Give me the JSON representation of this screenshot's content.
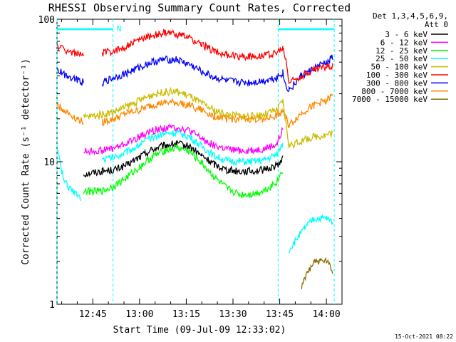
{
  "chart_data": {
    "type": "line",
    "title": "RHESSI Observing Summary Count Rates, Corrected",
    "xlabel": "Start Time (09-Jul-09 12:33:02)",
    "ylabel": "Corrected Count Rate (s⁻¹ detector⁻¹)",
    "yscale": "log",
    "ylim": [
      1,
      100
    ],
    "xlim_minutes": [
      -26.5,
      65
    ],
    "x_ticks": [
      {
        "label": "12:45",
        "min": -15
      },
      {
        "label": "13:00",
        "min": 0
      },
      {
        "label": "13:15",
        "min": 15
      },
      {
        "label": "13:30",
        "min": 30
      },
      {
        "label": "13:45",
        "min": 45
      },
      {
        "label": "14:00",
        "min": 60
      }
    ],
    "y_ticks": [
      {
        "label": "1",
        "value": 1
      },
      {
        "label": "10",
        "value": 10
      },
      {
        "label": "100",
        "value": 100
      }
    ],
    "legend_header": [
      "Det 1,3,4,5,6,9,",
      "Att 0"
    ],
    "legend_position": "right",
    "night_marker": "N",
    "night_intervals_min": [
      [
        -26.5,
        -8.5
      ],
      [
        44.5,
        62.5
      ]
    ],
    "series": [
      {
        "name": "3 - 6 keV",
        "color": "#000000",
        "values": [
          [
            -26.5,
            null
          ],
          [
            -19,
            null
          ],
          [
            -18,
            8.2
          ],
          [
            -12,
            8.6
          ],
          [
            -8,
            8.8
          ],
          [
            -4,
            9.5
          ],
          [
            0,
            10.8
          ],
          [
            4,
            12.2
          ],
          [
            8,
            13.0
          ],
          [
            12,
            13.4
          ],
          [
            16,
            12.8
          ],
          [
            20,
            11.0
          ],
          [
            24,
            9.6
          ],
          [
            28,
            8.8
          ],
          [
            32,
            8.6
          ],
          [
            36,
            8.6
          ],
          [
            40,
            8.8
          ],
          [
            44,
            9.4
          ],
          [
            46,
            10.5
          ],
          [
            47,
            null
          ]
        ]
      },
      {
        "name": "6 - 12 keV",
        "color": "#ff00ff",
        "values": [
          [
            -26.5,
            null
          ],
          [
            -19,
            null
          ],
          [
            -18,
            11.8
          ],
          [
            -12,
            12.0
          ],
          [
            -8,
            12.5
          ],
          [
            -4,
            13.5
          ],
          [
            0,
            15.0
          ],
          [
            4,
            16.5
          ],
          [
            8,
            17.3
          ],
          [
            12,
            17.5
          ],
          [
            16,
            16.5
          ],
          [
            20,
            14.5
          ],
          [
            24,
            13.0
          ],
          [
            28,
            12.2
          ],
          [
            32,
            12.0
          ],
          [
            36,
            12.0
          ],
          [
            40,
            12.3
          ],
          [
            44,
            13.2
          ],
          [
            46,
            16.8
          ],
          [
            47,
            null
          ]
        ]
      },
      {
        "name": "12 - 25 keV",
        "color": "#00ff00",
        "values": [
          [
            -26.5,
            null
          ],
          [
            -19,
            null
          ],
          [
            -18,
            6.2
          ],
          [
            -12,
            6.2
          ],
          [
            -8,
            6.8
          ],
          [
            -4,
            7.8
          ],
          [
            0,
            9.2
          ],
          [
            4,
            10.8
          ],
          [
            8,
            12.0
          ],
          [
            12,
            12.6
          ],
          [
            16,
            11.8
          ],
          [
            20,
            9.8
          ],
          [
            24,
            7.8
          ],
          [
            28,
            6.5
          ],
          [
            32,
            5.9
          ],
          [
            36,
            5.9
          ],
          [
            40,
            6.3
          ],
          [
            44,
            7.2
          ],
          [
            46,
            8.8
          ],
          [
            47,
            null
          ]
        ]
      },
      {
        "name": "25 - 50 keV",
        "color": "#00ffff",
        "values": [
          [
            -26.5,
            13
          ],
          [
            -25,
            8.5
          ],
          [
            -23,
            6.5
          ],
          [
            -21,
            6.2
          ],
          [
            -19,
            5.6
          ],
          [
            -16,
            null
          ],
          [
            -12,
            10.4
          ],
          [
            -8,
            10.8
          ],
          [
            -4,
            11.8
          ],
          [
            0,
            13.2
          ],
          [
            4,
            14.8
          ],
          [
            8,
            15.8
          ],
          [
            12,
            16.0
          ],
          [
            16,
            15.0
          ],
          [
            20,
            12.8
          ],
          [
            24,
            11.0
          ],
          [
            28,
            10.2
          ],
          [
            32,
            10.0
          ],
          [
            36,
            10.0
          ],
          [
            40,
            10.3
          ],
          [
            44,
            11.2
          ],
          [
            46,
            13.5
          ],
          [
            47,
            null
          ],
          [
            48,
            2.4
          ],
          [
            50,
            2.8
          ],
          [
            53,
            3.4
          ],
          [
            56,
            4.0
          ],
          [
            60,
            4.0
          ],
          [
            62,
            3.8
          ],
          [
            63,
            null
          ]
        ]
      },
      {
        "name": "50 - 100 keV",
        "color": "#ccbb00",
        "values": [
          [
            -26.5,
            null
          ],
          [
            -19,
            null
          ],
          [
            -18,
            20.5
          ],
          [
            -12,
            21.5
          ],
          [
            -8,
            22.5
          ],
          [
            -4,
            24.5
          ],
          [
            0,
            27.0
          ],
          [
            4,
            29.5
          ],
          [
            8,
            31.0
          ],
          [
            12,
            31.0
          ],
          [
            16,
            29.0
          ],
          [
            20,
            25.5
          ],
          [
            24,
            23.0
          ],
          [
            28,
            21.5
          ],
          [
            32,
            21.0
          ],
          [
            36,
            21.0
          ],
          [
            40,
            21.5
          ],
          [
            44,
            23.0
          ],
          [
            46,
            26.5
          ],
          [
            48,
            13.0
          ],
          [
            52,
            14.0
          ],
          [
            56,
            15.0
          ],
          [
            60,
            15.5
          ],
          [
            62,
            16.0
          ],
          [
            63,
            null
          ]
        ]
      },
      {
        "name": "100 - 300 keV",
        "color": "#ff0000",
        "values": [
          [
            -26.5,
            65
          ],
          [
            -23,
            60
          ],
          [
            -20,
            57
          ],
          [
            -18,
            55
          ],
          [
            -16,
            null
          ],
          [
            -12,
            58
          ],
          [
            -8,
            60
          ],
          [
            -4,
            65
          ],
          [
            0,
            72
          ],
          [
            4,
            77
          ],
          [
            8,
            80
          ],
          [
            12,
            79
          ],
          [
            16,
            74
          ],
          [
            20,
            66
          ],
          [
            24,
            60
          ],
          [
            28,
            56
          ],
          [
            32,
            55
          ],
          [
            36,
            55
          ],
          [
            40,
            56
          ],
          [
            44,
            58
          ],
          [
            46,
            62
          ],
          [
            47,
            52
          ],
          [
            48,
            36
          ],
          [
            52,
            40
          ],
          [
            56,
            44
          ],
          [
            60,
            47
          ],
          [
            62,
            47
          ],
          [
            63,
            null
          ]
        ]
      },
      {
        "name": "300 - 800 keV",
        "color": "#0000ff",
        "values": [
          [
            -26.5,
            44
          ],
          [
            -23,
            40
          ],
          [
            -20,
            38
          ],
          [
            -18,
            36
          ],
          [
            -16,
            null
          ],
          [
            -12,
            36
          ],
          [
            -8,
            39
          ],
          [
            -4,
            42
          ],
          [
            0,
            46
          ],
          [
            4,
            50
          ],
          [
            8,
            52
          ],
          [
            12,
            52
          ],
          [
            16,
            48
          ],
          [
            20,
            43
          ],
          [
            24,
            39
          ],
          [
            28,
            37
          ],
          [
            32,
            36
          ],
          [
            36,
            36
          ],
          [
            40,
            37
          ],
          [
            44,
            39
          ],
          [
            46,
            42
          ],
          [
            47,
            34
          ],
          [
            48,
            32
          ],
          [
            52,
            40
          ],
          [
            56,
            45
          ],
          [
            60,
            50
          ],
          [
            62,
            54
          ],
          [
            63,
            null
          ]
        ]
      },
      {
        "name": "800 - 7000 keV",
        "color": "#ff8800",
        "values": [
          [
            -26.5,
            25
          ],
          [
            -23,
            22
          ],
          [
            -20,
            20
          ],
          [
            -18,
            19
          ],
          [
            -16,
            null
          ],
          [
            -12,
            19
          ],
          [
            -8,
            20
          ],
          [
            -4,
            22
          ],
          [
            0,
            23
          ],
          [
            4,
            25
          ],
          [
            8,
            26
          ],
          [
            12,
            26
          ],
          [
            16,
            25
          ],
          [
            20,
            23
          ],
          [
            24,
            21
          ],
          [
            28,
            20
          ],
          [
            32,
            20
          ],
          [
            36,
            20
          ],
          [
            40,
            20
          ],
          [
            44,
            21
          ],
          [
            46,
            23
          ],
          [
            47,
            20
          ],
          [
            48,
            18
          ],
          [
            52,
            22
          ],
          [
            56,
            25
          ],
          [
            60,
            27
          ],
          [
            62,
            29
          ],
          [
            63,
            null
          ]
        ]
      },
      {
        "name": "7000 - 15000 keV",
        "color": "#8b6b00",
        "values": [
          [
            -26.5,
            null
          ],
          [
            51,
            null
          ],
          [
            52,
            1.3
          ],
          [
            54,
            1.7
          ],
          [
            56,
            2.0
          ],
          [
            58,
            2.0
          ],
          [
            60,
            2.0
          ],
          [
            62,
            1.7
          ],
          [
            63,
            null
          ]
        ]
      }
    ]
  },
  "footer": {
    "timestamp": "15-Oct-2021 08:22"
  }
}
